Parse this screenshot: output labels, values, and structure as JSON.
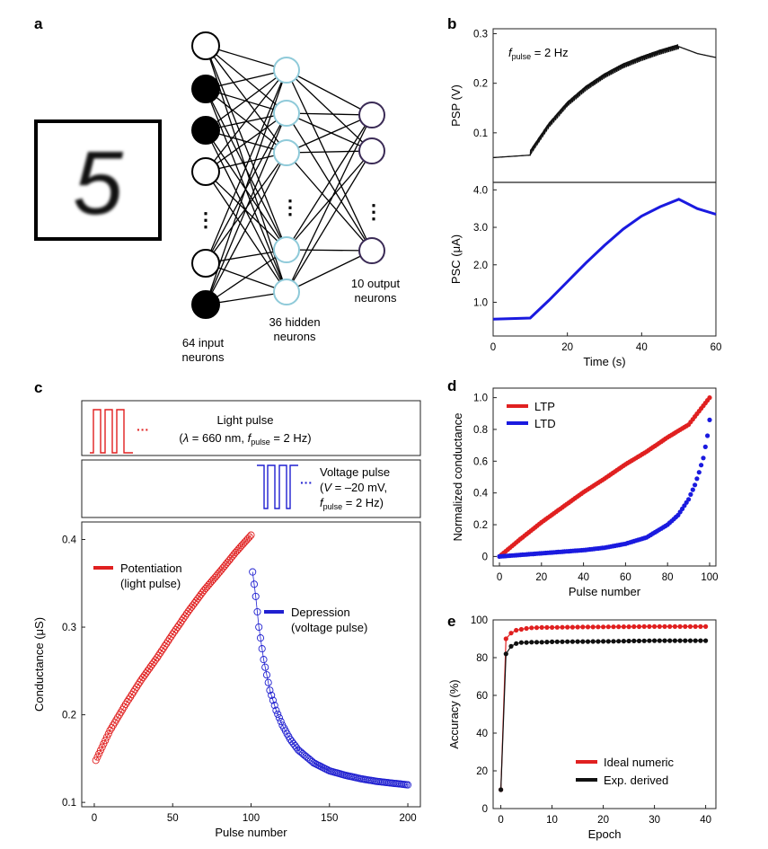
{
  "panels": {
    "a": {
      "label": "a",
      "input_label_1": "64 input",
      "input_label_2": "neurons",
      "hidden_label_1": "36 hidden",
      "hidden_label_2": "neurons",
      "output_label_1": "10 output",
      "output_label_2": "neurons",
      "digit": "5",
      "input_states": [
        0,
        1,
        1,
        0,
        0,
        1
      ],
      "ellipsis": "⋮"
    },
    "b": {
      "label": "b",
      "fpulse_text": "f",
      "fpulse_sub": "pulse",
      "fpulse_value": " = 2 Hz"
    },
    "c": {
      "label": "c",
      "light_title": "Light pulse",
      "light_params_open": "(",
      "light_lambda": "λ",
      "light_params_mid": " = 660 nm, ",
      "light_f": "f",
      "light_sub": "pulse",
      "light_params_end": " = 2 Hz)",
      "voltage_title": "Voltage pulse",
      "voltage_line2_open": "(",
      "voltage_V": "V",
      "voltage_line2_val": " = –20 mV,",
      "voltage_f": "f",
      "voltage_sub": "pulse",
      "voltage_line3_val": " = 2 Hz)",
      "dots": "···"
    },
    "d": {
      "label": "d"
    },
    "e": {
      "label": "e"
    }
  },
  "chart_data": [
    {
      "id": "b-psp",
      "type": "line",
      "title": "",
      "xlabel": "",
      "ylabel": "PSP (V)",
      "xlim": [
        0,
        60
      ],
      "ylim": [
        0.0,
        0.31
      ],
      "yticks": [
        0.1,
        0.2,
        0.3
      ],
      "ytick_labels": [
        "0.1",
        "0.2",
        "0.3"
      ],
      "series": [
        {
          "name": "PSP",
          "color": "#111111",
          "x": [
            0,
            10,
            10,
            15,
            20,
            25,
            30,
            35,
            40,
            45,
            50,
            55,
            60
          ],
          "y": [
            0.05,
            0.055,
            0.06,
            0.115,
            0.158,
            0.19,
            0.215,
            0.235,
            0.25,
            0.263,
            0.274,
            0.26,
            0.252
          ]
        }
      ]
    },
    {
      "id": "b-psc",
      "type": "line",
      "title": "",
      "xlabel": "Time (s)",
      "ylabel": "PSC (μA)",
      "xlim": [
        0,
        60
      ],
      "ylim": [
        0.1,
        4.2
      ],
      "xticks": [
        0,
        20,
        40,
        60
      ],
      "xtick_labels": [
        "0",
        "20",
        "40",
        "60"
      ],
      "yticks": [
        1.0,
        2.0,
        3.0,
        4.0
      ],
      "ytick_labels": [
        "1.0",
        "2.0",
        "3.0",
        "4.0"
      ],
      "series": [
        {
          "name": "PSC",
          "color": "#1a1adf",
          "x": [
            0,
            10,
            15,
            20,
            25,
            30,
            35,
            40,
            45,
            50,
            55,
            60
          ],
          "y": [
            0.55,
            0.58,
            1.05,
            1.55,
            2.05,
            2.52,
            2.95,
            3.3,
            3.55,
            3.75,
            3.5,
            3.35
          ]
        }
      ]
    },
    {
      "id": "c-conductance",
      "type": "scatter",
      "title": "",
      "xlabel": "Pulse number",
      "ylabel": "Conductance (μS)",
      "xlim": [
        -8,
        208
      ],
      "ylim": [
        0.095,
        0.42
      ],
      "xticks": [
        0,
        50,
        100,
        150,
        200
      ],
      "xtick_labels": [
        "0",
        "50",
        "100",
        "150",
        "200"
      ],
      "yticks": [
        0.1,
        0.2,
        0.3,
        0.4
      ],
      "ytick_labels": [
        "0.1",
        "0.2",
        "0.3",
        "0.4"
      ],
      "legend": "top-left",
      "series": [
        {
          "name": "Potentiation",
          "name_line2": "(light pulse)",
          "color": "#e02020",
          "x": [
            1,
            10,
            20,
            30,
            40,
            50,
            60,
            70,
            80,
            90,
            100
          ],
          "y": [
            0.148,
            0.182,
            0.212,
            0.24,
            0.265,
            0.292,
            0.318,
            0.342,
            0.363,
            0.385,
            0.405
          ]
        },
        {
          "name": "Depression",
          "name_line2": "(voltage pulse)",
          "color": "#2020d0",
          "x": [
            101,
            103,
            105,
            108,
            112,
            116,
            120,
            125,
            130,
            140,
            150,
            160,
            170,
            180,
            190,
            200
          ],
          "y": [
            0.363,
            0.335,
            0.3,
            0.263,
            0.228,
            0.205,
            0.188,
            0.172,
            0.16,
            0.145,
            0.136,
            0.131,
            0.127,
            0.124,
            0.122,
            0.12
          ]
        }
      ]
    },
    {
      "id": "d-normalized",
      "type": "scatter",
      "title": "",
      "xlabel": "Pulse number",
      "ylabel": "Normalized conductance",
      "xlim": [
        -3,
        103
      ],
      "ylim": [
        -0.06,
        1.06
      ],
      "xticks": [
        0,
        20,
        40,
        60,
        80,
        100
      ],
      "xtick_labels": [
        "0",
        "20",
        "40",
        "60",
        "80",
        "100"
      ],
      "yticks": [
        0,
        0.2,
        0.4,
        0.6,
        0.8,
        1.0
      ],
      "ytick_labels": [
        "0",
        "0.2",
        "0.4",
        "0.6",
        "0.8",
        "1.0"
      ],
      "legend": "top-left",
      "series": [
        {
          "name": "LTP",
          "color": "#e02020",
          "x": [
            0,
            10,
            20,
            30,
            40,
            50,
            60,
            70,
            80,
            90,
            100
          ],
          "y": [
            0.0,
            0.11,
            0.215,
            0.31,
            0.405,
            0.49,
            0.58,
            0.66,
            0.75,
            0.83,
            1.0
          ]
        },
        {
          "name": "LTD",
          "color": "#1a1adf",
          "x": [
            0,
            10,
            20,
            30,
            40,
            50,
            60,
            70,
            80,
            85,
            90,
            93,
            95,
            97,
            99,
            100
          ],
          "y": [
            0.0,
            0.01,
            0.02,
            0.03,
            0.04,
            0.055,
            0.08,
            0.12,
            0.2,
            0.26,
            0.36,
            0.45,
            0.53,
            0.62,
            0.76,
            0.86
          ]
        }
      ]
    },
    {
      "id": "e-accuracy",
      "type": "line",
      "title": "",
      "xlabel": "Epoch",
      "ylabel": "Accuracy (%)",
      "xlim": [
        -1.5,
        42
      ],
      "ylim": [
        0,
        100
      ],
      "xticks": [
        0,
        10,
        20,
        30,
        40
      ],
      "xtick_labels": [
        "0",
        "10",
        "20",
        "30",
        "40"
      ],
      "yticks": [
        0,
        20,
        40,
        60,
        80,
        100
      ],
      "ytick_labels": [
        "0",
        "20",
        "40",
        "60",
        "80",
        "100"
      ],
      "legend": "bottom-right",
      "series": [
        {
          "name": "Ideal numeric",
          "color": "#e02020",
          "x": [
            0,
            1,
            2,
            3,
            4,
            5,
            6,
            8,
            10,
            15,
            20,
            25,
            30,
            35,
            40
          ],
          "y": [
            10,
            90,
            93,
            94.5,
            95,
            95.5,
            95.8,
            96,
            96,
            96.2,
            96.3,
            96.4,
            96.5,
            96.5,
            96.5
          ]
        },
        {
          "name": "Exp. derived",
          "color": "#111111",
          "x": [
            0,
            1,
            2,
            3,
            4,
            5,
            6,
            8,
            10,
            15,
            20,
            25,
            30,
            35,
            40
          ],
          "y": [
            10,
            82,
            86,
            87.5,
            88,
            88,
            88.2,
            88.2,
            88.4,
            88.5,
            88.6,
            88.8,
            89,
            89,
            89
          ]
        }
      ]
    }
  ]
}
